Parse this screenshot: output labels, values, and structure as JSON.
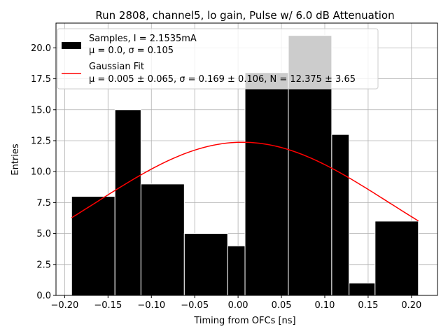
{
  "chart_data": {
    "type": "bar",
    "title": "Run 2808, channel5, lo gain, Pulse w/ 6.0 dB Attenuation",
    "xlabel": "Timing from OFCs [ns]",
    "ylabel": "Entries",
    "xlim": [
      -0.21,
      0.23
    ],
    "ylim": [
      0,
      22
    ],
    "xticks": [
      -0.2,
      -0.15,
      -0.1,
      -0.05,
      0.0,
      0.05,
      0.1,
      0.15,
      0.2
    ],
    "xtick_labels": [
      "−0.20",
      "−0.15",
      "−0.10",
      "−0.05",
      "0.00",
      "0.05",
      "0.10",
      "0.15",
      "0.20"
    ],
    "yticks": [
      0,
      2.5,
      5,
      7.5,
      10,
      12.5,
      15,
      17.5,
      20
    ],
    "ytick_labels": [
      "0.0",
      "2.5",
      "5.0",
      "7.5",
      "10.0",
      "12.5",
      "15.0",
      "17.5",
      "20.0"
    ],
    "grid": true,
    "histogram": {
      "bin_edges": [
        -0.192,
        -0.142,
        -0.112,
        -0.062,
        -0.012,
        0.008,
        0.058,
        0.108,
        0.128,
        0.158,
        0.208
      ],
      "bins": [
        {
          "left": -0.192,
          "right": -0.142,
          "count": 8,
          "color": "#000000"
        },
        {
          "left": -0.142,
          "right": -0.112,
          "count": 15,
          "color": "#000000"
        },
        {
          "left": -0.112,
          "right": -0.062,
          "count": 9,
          "color": "#000000"
        },
        {
          "left": -0.062,
          "right": -0.012,
          "count": 5,
          "color": "#000000"
        },
        {
          "left": -0.012,
          "right": 0.008,
          "count": 4,
          "color": "#000000"
        },
        {
          "left": 0.008,
          "right": 0.058,
          "count": 18,
          "color": "#000000"
        },
        {
          "left": 0.058,
          "right": 0.108,
          "count": 21,
          "color": "#000000"
        },
        {
          "left": 0.108,
          "right": 0.128,
          "count": 13,
          "color": "#000000"
        },
        {
          "left": 0.128,
          "right": 0.158,
          "count": 1,
          "color": "#000000"
        },
        {
          "left": 0.158,
          "right": 0.208,
          "count": 6,
          "color": "#000000"
        }
      ]
    },
    "fit": {
      "name": "Gaussian Fit",
      "color": "#ff0000",
      "mu": 0.005,
      "sigma": 0.169,
      "N": 12.375,
      "x_range": [
        -0.192,
        0.208
      ]
    },
    "legend": {
      "position": "top-left",
      "entries": [
        {
          "kind": "patch",
          "color": "#000000",
          "lines": [
            "Samples, I = 2.1535mA",
            "μ = 0.0, σ = 0.105"
          ]
        },
        {
          "kind": "line",
          "color": "#ff0000",
          "lines": [
            "Gaussian Fit",
            "μ = 0.005 ± 0.065, σ = 0.169 ± 0.106, N = 12.375 ± 3.65"
          ]
        }
      ]
    }
  }
}
